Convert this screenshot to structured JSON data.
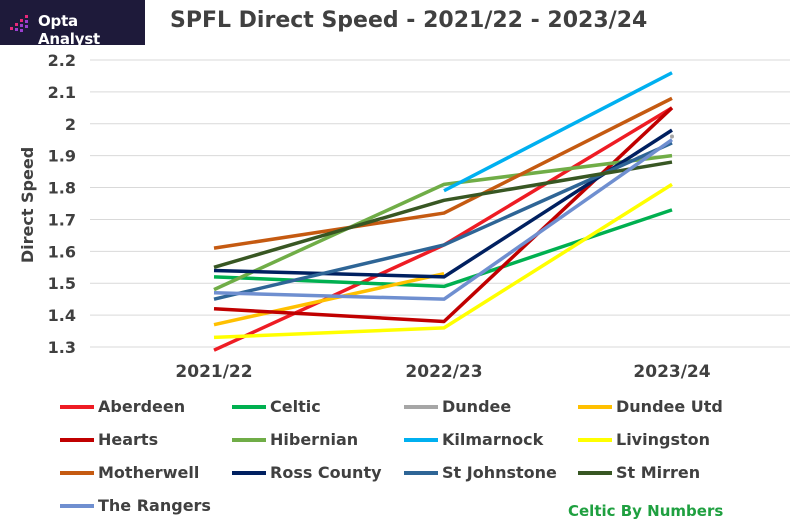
{
  "header": {
    "logo_text": "Opta Analyst",
    "logo_icon": "opta-bars-icon",
    "title": "SPFL Direct Speed - 2021/22 - 2023/24"
  },
  "credit": "Celtic By Numbers",
  "chart_data": {
    "type": "line",
    "title": "SPFL Direct Speed - 2021/22 - 2023/24",
    "xlabel": "",
    "ylabel": "Direct Speed",
    "categories": [
      "2021/22",
      "2022/23",
      "2023/24"
    ],
    "ylim": [
      1.3,
      2.2
    ],
    "yticks": [
      "1.3",
      "1.4",
      "1.5",
      "1.6",
      "1.7",
      "1.8",
      "1.9",
      "2",
      "2.1",
      "2.2"
    ],
    "grid": true,
    "legend_position": "bottom",
    "series": [
      {
        "name": "Aberdeen",
        "color": "#ee1c24",
        "values": [
          1.29,
          1.62,
          2.05
        ]
      },
      {
        "name": "Celtic",
        "color": "#00b050",
        "values": [
          1.52,
          1.49,
          1.73
        ]
      },
      {
        "name": "Dundee",
        "color": "#a6a6a6",
        "values": [
          null,
          null,
          1.96
        ]
      },
      {
        "name": "Dundee Utd",
        "color": "#ffc000",
        "values": [
          1.37,
          1.53,
          null
        ]
      },
      {
        "name": "Hearts",
        "color": "#c00000",
        "values": [
          1.42,
          1.38,
          2.05
        ]
      },
      {
        "name": "Hibernian",
        "color": "#70ad47",
        "values": [
          1.48,
          1.81,
          1.9
        ]
      },
      {
        "name": "Kilmarnock",
        "color": "#00b0f0",
        "values": [
          null,
          1.79,
          2.16
        ]
      },
      {
        "name": "Livingston",
        "color": "#ffff00",
        "values": [
          1.33,
          1.36,
          1.81
        ]
      },
      {
        "name": "Motherwell",
        "color": "#c55a11",
        "values": [
          1.61,
          1.72,
          2.08
        ]
      },
      {
        "name": "Ross County",
        "color": "#002060",
        "values": [
          1.54,
          1.52,
          1.98
        ]
      },
      {
        "name": "St Johnstone",
        "color": "#2e6596",
        "values": [
          1.45,
          1.62,
          1.94
        ]
      },
      {
        "name": "St Mirren",
        "color": "#385723",
        "values": [
          1.55,
          1.76,
          1.88
        ]
      },
      {
        "name": "The Rangers",
        "color": "#6f8fd0",
        "values": [
          1.47,
          1.45,
          1.95
        ]
      }
    ]
  }
}
